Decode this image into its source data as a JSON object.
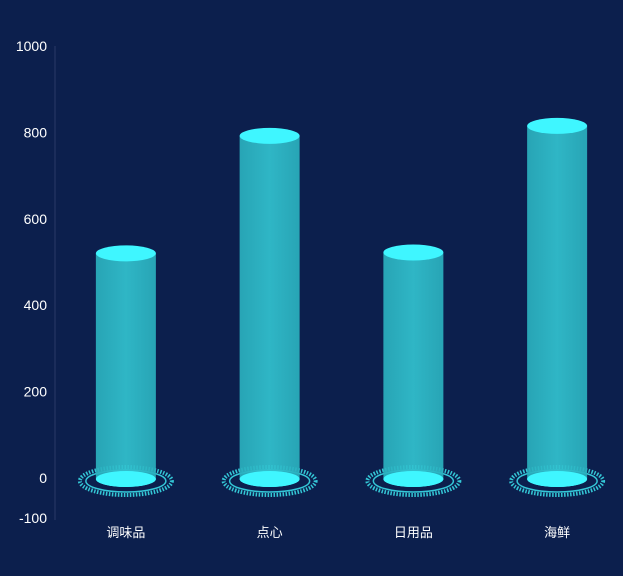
{
  "colors": {
    "background": "#0c1f4d",
    "bar_body": "#2fbac8",
    "bar_cap": "#3ff6ff",
    "base_ring": "#39d9e6",
    "axis_line": "#3a4770"
  },
  "chart_data": {
    "type": "bar",
    "title": "",
    "xlabel": "",
    "ylabel": "",
    "categories": [
      "调味品",
      "点心",
      "日用品",
      "海鲜"
    ],
    "values": [
      520,
      792,
      522,
      815
    ],
    "ylim": [
      -100,
      1000
    ],
    "y_ticks": [
      1000,
      800,
      600,
      400,
      200,
      0,
      -100
    ],
    "grid": false,
    "legend": "none"
  }
}
